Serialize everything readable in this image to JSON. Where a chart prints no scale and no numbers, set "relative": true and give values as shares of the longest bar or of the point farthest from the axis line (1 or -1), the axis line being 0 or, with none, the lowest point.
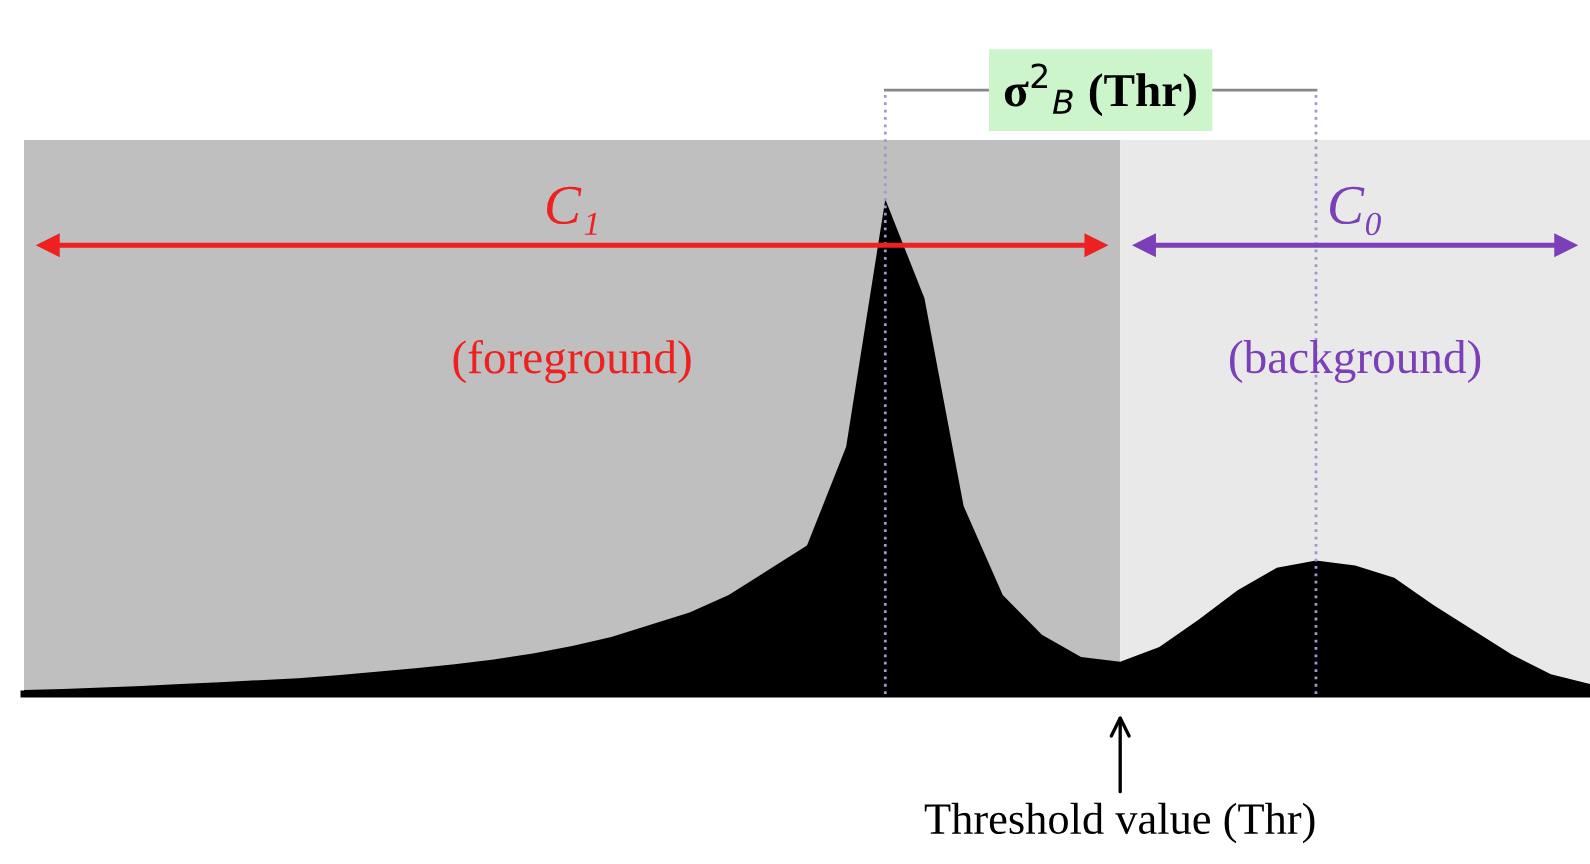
{
  "chart_data": {
    "type": "area",
    "relative": true,
    "categories": [
      null,
      null,
      null,
      null,
      null,
      null,
      null,
      null,
      null,
      null,
      null,
      null,
      null,
      null,
      null,
      null,
      null,
      null,
      null,
      null,
      null,
      null,
      null,
      null,
      null,
      null,
      null,
      null,
      null,
      null,
      null,
      null,
      null,
      null,
      null,
      null,
      null,
      null,
      null,
      null,
      null
    ],
    "series": [
      {
        "color": "#000000",
        "values": [
          0.008,
          0.01,
          0.013,
          0.016,
          0.02,
          0.024,
          0.028,
          0.032,
          0.038,
          0.045,
          0.052,
          0.06,
          0.07,
          0.082,
          0.097,
          0.115,
          0.14,
          0.165,
          0.2,
          0.25,
          0.3,
          0.5,
          1,
          0.8,
          0.38,
          0.2,
          0.12,
          0.075,
          0.065,
          0.095,
          0.15,
          0.21,
          0.255,
          0.27,
          0.26,
          0.235,
          0.18,
          0.13,
          0.08,
          0.04,
          0.02
        ]
      }
    ],
    "annotations": [
      "C₁",
      "(foreground)",
      "C₀",
      "(background)",
      "σ$^{2}$$_{B}$ (Thr)",
      "Threshold value (Thr)"
    ]
  }
}
